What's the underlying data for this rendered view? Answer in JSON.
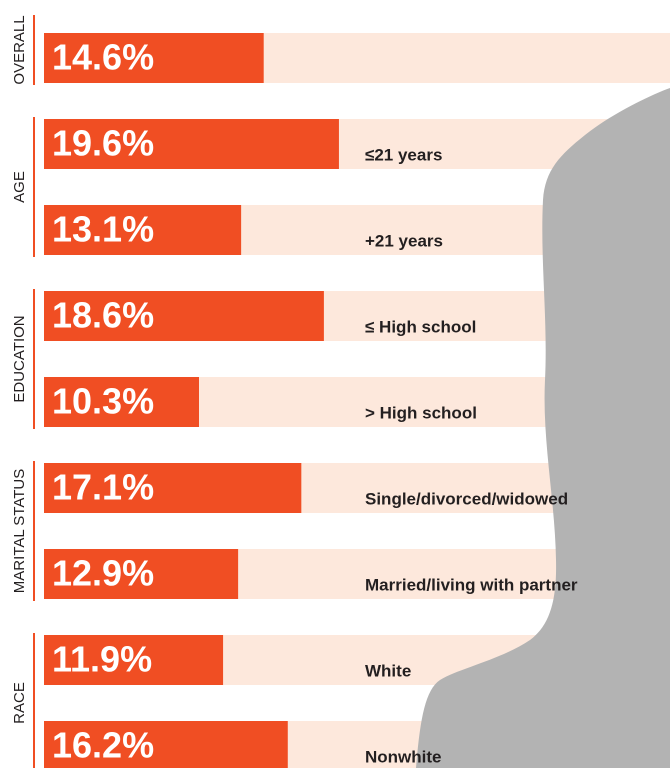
{
  "chart_data": {
    "type": "bar",
    "xlim": [
      0,
      41.6
    ],
    "color": "#f04e23",
    "band_color": "#fde8dc",
    "groups": [
      {
        "name": "OVERALL",
        "categories": [
          null
        ],
        "values": [
          14.6
        ],
        "value_labels": [
          "14.6%"
        ]
      },
      {
        "name": "AGE",
        "categories": [
          "≤21 years",
          "+21 years"
        ],
        "values": [
          19.6,
          13.1
        ],
        "value_labels": [
          "19.6%",
          "13.1%"
        ]
      },
      {
        "name": "EDUCATION",
        "categories": [
          "≤ High school",
          "> High school"
        ],
        "values": [
          18.6,
          10.3
        ],
        "value_labels": [
          "18.6%",
          "10.3%"
        ]
      },
      {
        "name": "MARITAL STATUS",
        "categories": [
          "Single/divorced/widowed",
          "Married/living with partner"
        ],
        "values": [
          17.1,
          12.9
        ],
        "value_labels": [
          "17.1%",
          "12.9%"
        ]
      },
      {
        "name": "RACE",
        "categories": [
          "White",
          "Nonwhite"
        ],
        "values": [
          11.9,
          16.2
        ],
        "value_labels": [
          "11.9%",
          "16.2%"
        ]
      }
    ]
  }
}
